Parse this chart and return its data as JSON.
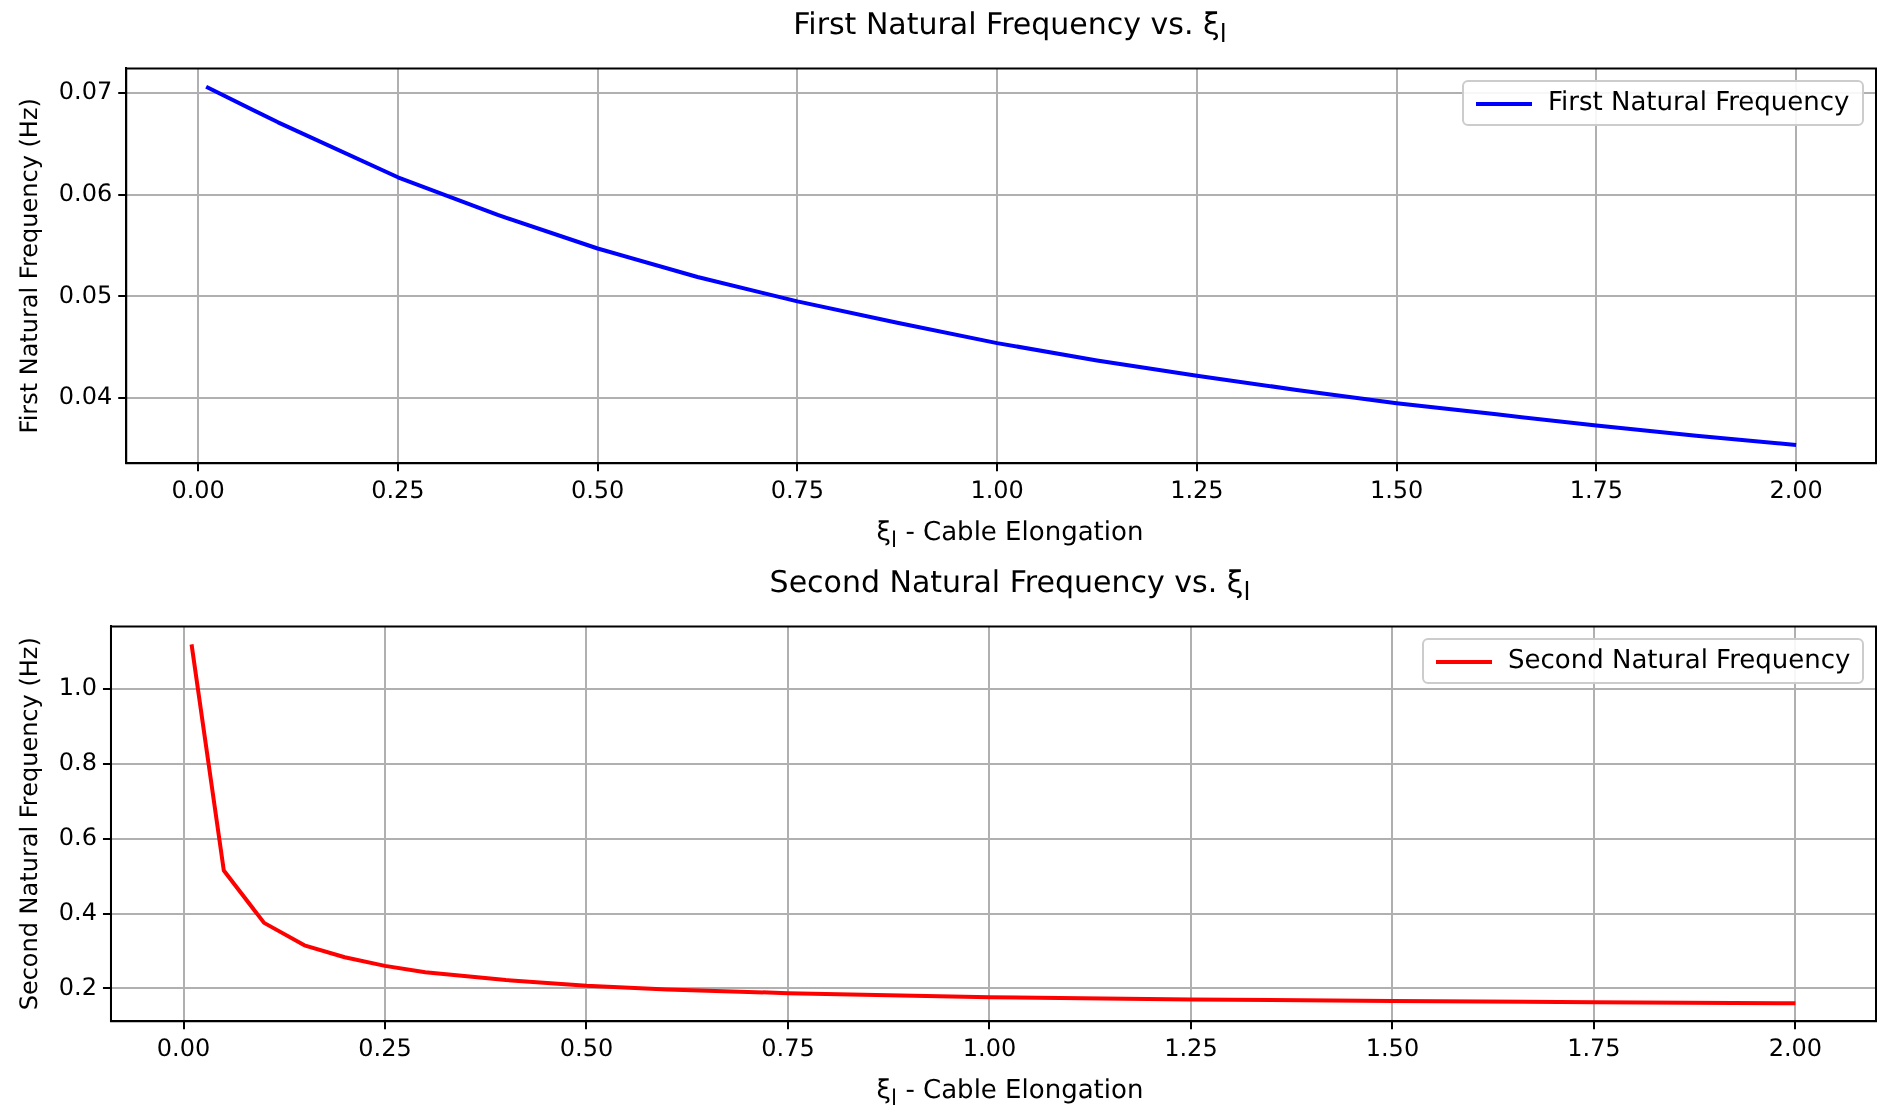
{
  "chart_data": [
    {
      "type": "line",
      "title": "First Natural Frequency vs. ξ$_{l}$",
      "xlabel": "ξ$_{l}$ - Cable Elongation",
      "ylabel": "First Natural Frequency (Hz)",
      "xlim": [
        -0.09,
        2.1
      ],
      "xticks": [
        {
          "value": 0,
          "label": "0.00"
        },
        {
          "value": 0.25,
          "label": "0.25"
        },
        {
          "value": 0.5,
          "label": "0.50"
        },
        {
          "value": 0.75,
          "label": "0.75"
        },
        {
          "value": 1,
          "label": "1.00"
        },
        {
          "value": 1.25,
          "label": "1.25"
        },
        {
          "value": 1.5,
          "label": "1.50"
        },
        {
          "value": 1.75,
          "label": "1.75"
        },
        {
          "value": 2,
          "label": "2.00"
        }
      ],
      "ylim": [
        0.0336,
        0.0724
      ],
      "yticks": [
        {
          "value": 0.04,
          "label": "0.04"
        },
        {
          "value": 0.05,
          "label": "0.05"
        },
        {
          "value": 0.06,
          "label": "0.06"
        },
        {
          "value": 0.07,
          "label": "0.07"
        }
      ],
      "grid": true,
      "legend": "top right",
      "x": [
        0.01,
        0.1,
        0.25,
        0.375,
        0.5,
        0.625,
        0.75,
        0.875,
        1.0,
        1.125,
        1.25,
        1.375,
        1.5,
        1.625,
        1.75,
        1.875,
        2.0
      ],
      "series": [
        {
          "name": "First Natural Frequency",
          "color": "#0000ff",
          "values": [
            0.0706,
            0.0671,
            0.0617,
            0.058,
            0.0547,
            0.0519,
            0.0495,
            0.0474,
            0.0454,
            0.0437,
            0.0422,
            0.0408,
            0.0395,
            0.0384,
            0.0373,
            0.0363,
            0.0354
          ]
        }
      ]
    },
    {
      "type": "line",
      "title": "Second Natural Frequency vs. ξ$_{l}$",
      "xlabel": "ξ$_{l}$ - Cable Elongation",
      "ylabel": "Second Natural Frequency (Hz)",
      "xlim": [
        -0.09,
        2.1
      ],
      "xticks": [
        {
          "value": 0,
          "label": "0.00"
        },
        {
          "value": 0.25,
          "label": "0.25"
        },
        {
          "value": 0.5,
          "label": "0.50"
        },
        {
          "value": 0.75,
          "label": "0.75"
        },
        {
          "value": 1,
          "label": "1.00"
        },
        {
          "value": 1.25,
          "label": "1.25"
        },
        {
          "value": 1.5,
          "label": "1.50"
        },
        {
          "value": 1.75,
          "label": "1.75"
        },
        {
          "value": 2,
          "label": "2.00"
        }
      ],
      "ylim": [
        0.112,
        1.168
      ],
      "yticks": [
        0.2,
        0.4,
        0.6,
        0.8,
        {
          "value": 1,
          "label": "1.0"
        }
      ],
      "grid": true,
      "legend": "top right",
      "x": [
        0.01,
        0.05,
        0.1,
        0.15,
        0.2,
        0.25,
        0.3,
        0.4,
        0.5,
        0.6,
        0.75,
        1.0,
        1.25,
        1.5,
        1.75,
        2.0
      ],
      "series": [
        {
          "name": "Second Natural Frequency",
          "color": "#ff0000",
          "values": [
            1.12,
            0.515,
            0.375,
            0.315,
            0.283,
            0.26,
            0.243,
            0.222,
            0.207,
            0.197,
            0.187,
            0.176,
            0.17,
            0.166,
            0.163,
            0.16
          ]
        }
      ]
    }
  ]
}
